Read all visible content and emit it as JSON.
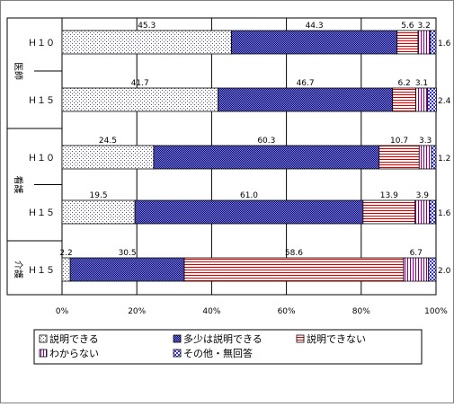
{
  "chart_data": {
    "type": "bar",
    "orientation": "horizontal",
    "stacked": true,
    "xlim": [
      0,
      100
    ],
    "xticks": [
      "0%",
      "20%",
      "40%",
      "60%",
      "80%",
      "100%"
    ],
    "grid": true,
    "legend_position": "bottom",
    "groups": [
      {
        "label": "医師",
        "rows": [
          0,
          1
        ]
      },
      {
        "label": "看護",
        "rows": [
          2,
          3
        ]
      },
      {
        "label": "介護",
        "rows": [
          4
        ]
      }
    ],
    "categories": [
      "Ｈ１０",
      "Ｈ１５",
      "Ｈ１０",
      "Ｈ１５",
      "Ｈ１５"
    ],
    "series": [
      {
        "name": "説明できる",
        "values": [
          45.3,
          41.7,
          24.5,
          19.5,
          2.2
        ],
        "labels": [
          "45.3",
          "41.7",
          "24.5",
          "19.5",
          "2.2"
        ],
        "pattern": "dots-light"
      },
      {
        "name": "多少は説明できる",
        "values": [
          44.3,
          46.7,
          60.3,
          61.0,
          30.5
        ],
        "labels": [
          "44.3",
          "46.7",
          "60.3",
          "61.0",
          "30.5"
        ],
        "pattern": "dense-blue"
      },
      {
        "name": "説明できない",
        "values": [
          5.6,
          6.2,
          10.7,
          13.9,
          58.6
        ],
        "labels": [
          "5.6",
          "6.2",
          "10.7",
          "13.9",
          "58.6"
        ],
        "pattern": "red-hlines"
      },
      {
        "name": "わからない",
        "values": [
          3.2,
          3.1,
          3.3,
          3.9,
          6.7
        ],
        "labels": [
          "3.2",
          "3.1",
          "3.3",
          "3.9",
          "6.7"
        ],
        "pattern": "purple-vlines"
      },
      {
        "name": "その他・無回答",
        "values": [
          1.6,
          2.4,
          1.2,
          1.6,
          2.0
        ],
        "labels": [
          "1.6",
          "2.4",
          "1.2",
          "1.6",
          "2.0"
        ],
        "pattern": "blue-checks"
      }
    ],
    "colors": {
      "navy": "#000080",
      "red": "#cc0000",
      "purple": "#800080",
      "blue": "#3333cc",
      "frame": "#808080",
      "grid": "#000000"
    }
  }
}
